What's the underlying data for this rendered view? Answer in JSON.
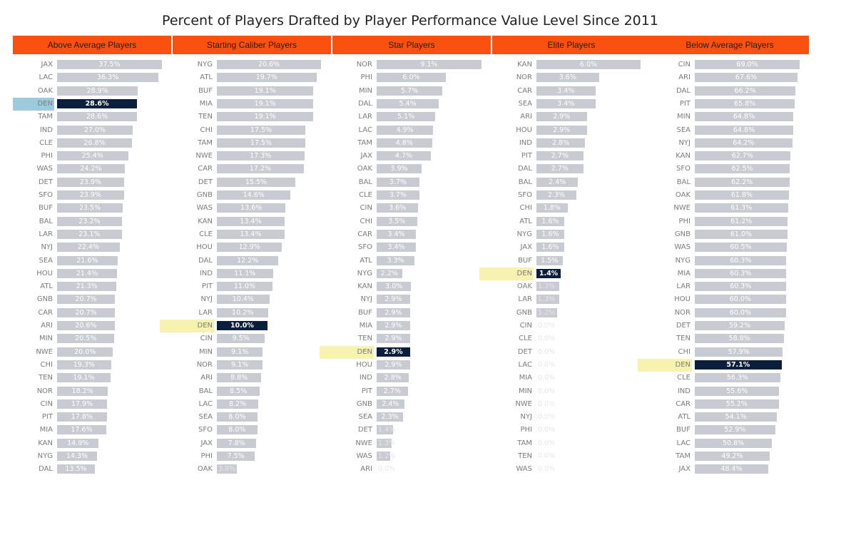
{
  "title": "Percent of Players Drafted by Player Performance Value Level Since 2011",
  "colors": {
    "header": "#fb5110",
    "bar": "#c8cbd1",
    "highlight_bar": "#0b1f3d",
    "highlight_label_first": "#9ecbdc",
    "highlight_label": "#f6f2b0",
    "value_text": "#ffffff"
  },
  "chart_data": [
    {
      "type": "bar",
      "orientation": "horizontal",
      "title": "Above Average Players",
      "highlight": "DEN",
      "categories": [
        "JAX",
        "LAC",
        "OAK",
        "DEN",
        "TAM",
        "IND",
        "CLE",
        "PHI",
        "WAS",
        "DET",
        "SFO",
        "BUF",
        "BAL",
        "LAR",
        "NYJ",
        "SEA",
        "HOU",
        "ATL",
        "GNB",
        "CAR",
        "ARI",
        "MIN",
        "NWE",
        "CHI",
        "TEN",
        "NOR",
        "CIN",
        "PIT",
        "MIA",
        "KAN",
        "NYG",
        "DAL"
      ],
      "values": [
        37.5,
        36.3,
        28.9,
        28.6,
        28.6,
        27.0,
        26.8,
        25.4,
        24.2,
        23.9,
        23.9,
        23.5,
        23.2,
        23.1,
        22.4,
        21.6,
        21.4,
        21.3,
        20.7,
        20.7,
        20.6,
        20.5,
        20.0,
        19.3,
        19.1,
        18.2,
        17.9,
        17.8,
        17.6,
        14.9,
        14.3,
        13.5
      ],
      "labels": [
        "37.5%",
        "36.3%",
        "28.9%",
        "28.6%",
        "28.6%",
        "27.0%",
        "26.8%",
        "25.4%",
        "24.2%",
        "23.9%",
        "23.9%",
        "23.5%",
        "23.2%",
        "23.1%",
        "22.4%",
        "21.6%",
        "21.4%",
        "21.3%",
        "20.7%",
        "20.7%",
        "20.6%",
        "20.5%",
        "20.0%",
        "19.3%",
        "19.1%",
        "18.2%",
        "17.9%",
        "17.8%",
        "17.6%",
        "14.9%",
        "14.3%",
        "13.5%"
      ]
    },
    {
      "type": "bar",
      "orientation": "horizontal",
      "title": "Starting Caliber Players",
      "highlight": "DEN",
      "categories": [
        "NYG",
        "ATL",
        "BUF",
        "MIA",
        "TEN",
        "CHI",
        "TAM",
        "NWE",
        "CAR",
        "DET",
        "GNB",
        "WAS",
        "KAN",
        "CLE",
        "HOU",
        "DAL",
        "IND",
        "PIT",
        "NYJ",
        "LAR",
        "DEN",
        "CIN",
        "MIN",
        "NOR",
        "ARI",
        "BAL",
        "LAC",
        "SEA",
        "SFO",
        "JAX",
        "PHI",
        "OAK"
      ],
      "values": [
        20.6,
        19.7,
        19.1,
        19.1,
        19.1,
        17.5,
        17.5,
        17.3,
        17.2,
        15.5,
        14.6,
        13.6,
        13.4,
        13.4,
        12.9,
        12.2,
        11.1,
        11.0,
        10.4,
        10.2,
        10.0,
        9.5,
        9.1,
        9.1,
        8.8,
        8.5,
        8.2,
        8.0,
        8.0,
        7.8,
        7.5,
        3.9
      ],
      "labels": [
        "20.6%",
        "19.7%",
        "19.1%",
        "19.1%",
        "19.1%",
        "17.5%",
        "17.5%",
        "17.3%",
        "17.2%",
        "15.5%",
        "14.6%",
        "13.6%",
        "13.4%",
        "13.4%",
        "12.9%",
        "12.2%",
        "11.1%",
        "11.0%",
        "10.4%",
        "10.2%",
        "10.0%",
        "9.5%",
        "9.1%",
        "9.1%",
        "8.8%",
        "8.5%",
        "8.2%",
        "8.0%",
        "8.0%",
        "7.8%",
        "7.5%",
        "3.9%"
      ]
    },
    {
      "type": "bar",
      "orientation": "horizontal",
      "title": "Star Players",
      "highlight": "DEN",
      "categories": [
        "NOR",
        "PHI",
        "MIN",
        "DAL",
        "LAR",
        "LAC",
        "TAM",
        "JAX",
        "OAK",
        "BAL",
        "CLE",
        "CIN",
        "CHI",
        "CAR",
        "SFO",
        "ATL",
        "NYG",
        "KAN",
        "NYJ",
        "BUF",
        "MIA",
        "TEN",
        "DEN",
        "HOU",
        "IND",
        "PIT",
        "GNB",
        "SEA",
        "DET",
        "NWE",
        "WAS",
        "ARI"
      ],
      "values": [
        9.1,
        6.0,
        5.7,
        5.4,
        5.1,
        4.9,
        4.8,
        4.7,
        3.9,
        3.7,
        3.7,
        3.6,
        3.5,
        3.4,
        3.4,
        3.3,
        2.2,
        3.0,
        2.9,
        2.9,
        2.9,
        2.9,
        2.9,
        2.9,
        2.8,
        2.7,
        2.4,
        2.3,
        1.4,
        1.3,
        1.2,
        0.0
      ],
      "labels": [
        "9.1%",
        "6.0%",
        "5.7%",
        "5.4%",
        "5.1%",
        "4.9%",
        "4.8%",
        "4.7%",
        "3.9%",
        "3.7%",
        "3.7%",
        "3.6%",
        "3.5%",
        "3.4%",
        "3.4%",
        "3.3%",
        "2.2%",
        "3.0%",
        "2.9%",
        "2.9%",
        "2.9%",
        "2.9%",
        "2.9%",
        "2.9%",
        "2.8%",
        "2.7%",
        "2.4%",
        "2.3%",
        "1.4%",
        "1.3%",
        "1.2%",
        "0.0%"
      ]
    },
    {
      "type": "bar",
      "orientation": "horizontal",
      "title": "Elite Players",
      "highlight": "DEN",
      "categories": [
        "KAN",
        "NOR",
        "CAR",
        "SEA",
        "ARI",
        "HOU",
        "IND",
        "PIT",
        "DAL",
        "BAL",
        "SFO",
        "CHI",
        "ATL",
        "NYG",
        "JAX",
        "BUF",
        "DEN",
        "OAK",
        "LAR",
        "GNB",
        "CIN",
        "CLE",
        "DET",
        "LAC",
        "MIA",
        "MIN",
        "NWE",
        "NYJ",
        "PHI",
        "TAM",
        "TEN",
        "WAS"
      ],
      "values": [
        6.0,
        3.6,
        3.4,
        3.4,
        2.9,
        2.9,
        2.8,
        2.7,
        2.7,
        2.4,
        2.3,
        1.8,
        1.6,
        1.6,
        1.6,
        1.5,
        1.4,
        1.3,
        1.3,
        1.2,
        0.0,
        0.0,
        0.0,
        0.0,
        0.0,
        0.0,
        0.0,
        0.0,
        0.0,
        0.0,
        0.0,
        0.0
      ],
      "labels": [
        "6.0%",
        "3.6%",
        "3.4%",
        "3.4%",
        "2.9%",
        "2.9%",
        "2.8%",
        "2.7%",
        "2.7%",
        "2.4%",
        "2.3%",
        "1.8%",
        "1.6%",
        "1.6%",
        "1.6%",
        "1.5%",
        "1.4%",
        "1.3%",
        "1.3%",
        "1.2%",
        "0.0%",
        "0.0%",
        "0.0%",
        "0.0%",
        "0.0%",
        "0.0%",
        "0.0%",
        "0.0%",
        "0.0%",
        "0.0%",
        "0.0%",
        "0.0%"
      ]
    },
    {
      "type": "bar",
      "orientation": "horizontal",
      "title": "Below Average Players",
      "highlight": "DEN",
      "categories": [
        "CIN",
        "ARI",
        "DAL",
        "PIT",
        "MIN",
        "SEA",
        "NYJ",
        "KAN",
        "SFO",
        "BAL",
        "OAK",
        "NWE",
        "PHI",
        "GNB",
        "WAS",
        "NYG",
        "MIA",
        "LAR",
        "HOU",
        "NOR",
        "DET",
        "TEN",
        "CHI",
        "DEN",
        "CLE",
        "IND",
        "CAR",
        "ATL",
        "BUF",
        "LAC",
        "TAM",
        "JAX"
      ],
      "values": [
        69.0,
        67.6,
        66.2,
        65.8,
        64.8,
        64.8,
        64.2,
        62.7,
        62.5,
        62.2,
        61.8,
        61.3,
        61.2,
        61.0,
        60.5,
        60.3,
        60.3,
        60.3,
        60.0,
        60.0,
        59.2,
        58.8,
        57.9,
        57.1,
        56.3,
        55.6,
        55.2,
        54.1,
        52.9,
        50.8,
        49.2,
        48.4
      ],
      "labels": [
        "69.0%",
        "67.6%",
        "66.2%",
        "65.8%",
        "64.8%",
        "64.8%",
        "64.2%",
        "62.7%",
        "62.5%",
        "62.2%",
        "61.8%",
        "61.3%",
        "61.2%",
        "61.0%",
        "60.5%",
        "60.3%",
        "60.3%",
        "60.3%",
        "60.0%",
        "60.0%",
        "59.2%",
        "58.8%",
        "57.9%",
        "57.1%",
        "56.3%",
        "55.6%",
        "55.2%",
        "54.1%",
        "52.9%",
        "50.8%",
        "49.2%",
        "48.4%"
      ]
    }
  ]
}
